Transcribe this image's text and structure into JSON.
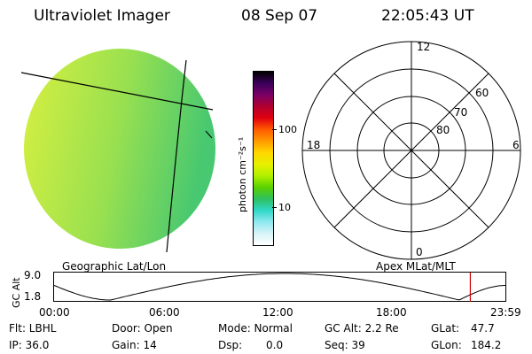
{
  "header": {
    "instrument": "Ultraviolet Imager",
    "date": "08 Sep 07",
    "time": "22:05:43 UT"
  },
  "colorbar": {
    "unit_label": "photon cm⁻²s⁻¹",
    "ticks": [
      "100",
      "10"
    ],
    "colors": [
      "#000000",
      "#3a005a",
      "#7a0066",
      "#b00030",
      "#e00010",
      "#ff5a00",
      "#ff9a00",
      "#ffd700",
      "#e8f000",
      "#b0f000",
      "#5ad000",
      "#2ec060",
      "#30d8c8",
      "#90e8f0",
      "#d8f4f8",
      "#ffffff"
    ]
  },
  "image": {
    "label": "Geographic Lat/Lon",
    "fill_left": "#d8f040",
    "fill_right": "#48c870"
  },
  "polar": {
    "label": "Apex MLat/MLT",
    "mlt": {
      "top": "12",
      "bottom": "0",
      "left": "18",
      "right": "6"
    },
    "lat_rings": [
      "60",
      "70",
      "80"
    ]
  },
  "altitude_plot": {
    "ylabel": "GC Alt",
    "ymax": "9.0",
    "ymin": "1.8",
    "xticks": [
      "00:00",
      "06:00",
      "12:00",
      "18:00",
      "23:59"
    ],
    "marker_color": "#cc0000",
    "marker_time_hours": 22.09
  },
  "status": {
    "filter": "Flt: LBHL",
    "ip": "IP: 36.0",
    "door": "Door: Open",
    "gain": "Gain: 14",
    "mode": "Mode: Normal",
    "dsp_label": "Dsp:",
    "dsp_value": "0.0",
    "gc_alt": "GC Alt: 2.2 Re",
    "seq": "Seq: 39",
    "glat": "GLat:",
    "glat_value": "47.7",
    "glon": "GLon:",
    "glon_value": "184.2"
  }
}
